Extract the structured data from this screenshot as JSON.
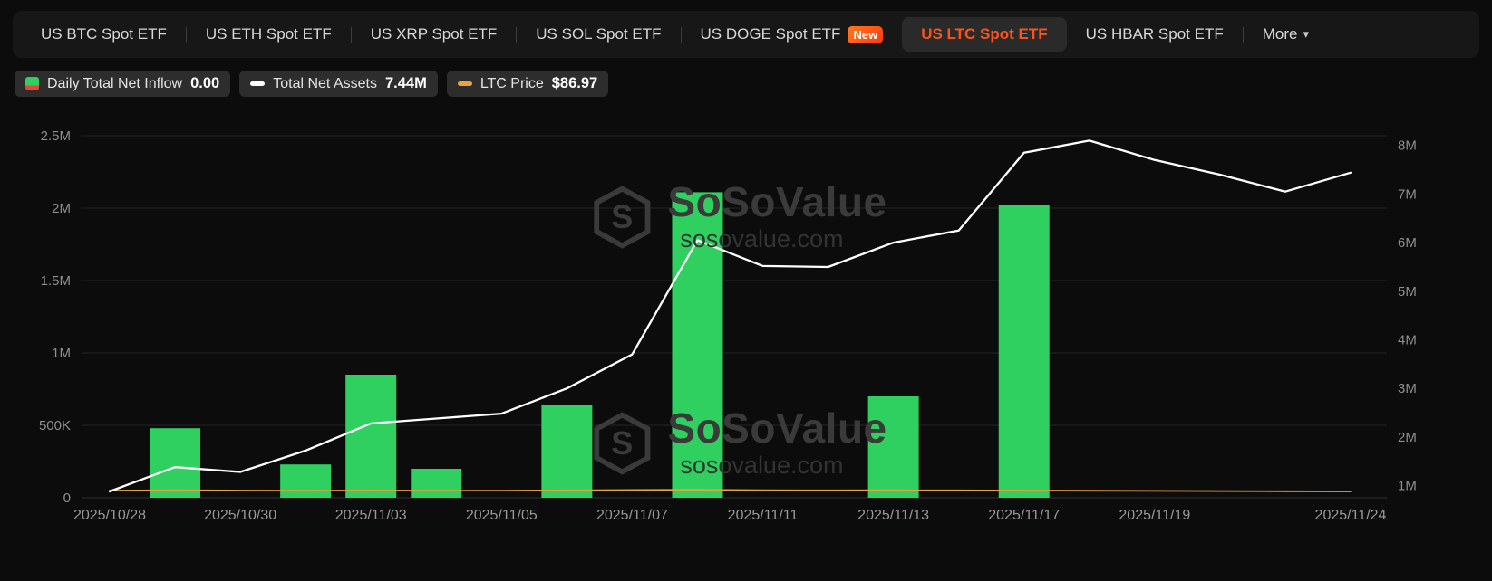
{
  "tab_bar": {
    "tabs": [
      {
        "label": "US BTC Spot ETF"
      },
      {
        "label": "US ETH Spot ETF"
      },
      {
        "label": "US XRP Spot ETF"
      },
      {
        "label": "US SOL Spot ETF"
      },
      {
        "label": "US DOGE Spot ETF",
        "badge": "New"
      },
      {
        "label": "US LTC Spot ETF",
        "active": true
      },
      {
        "label": "US HBAR Spot ETF"
      }
    ],
    "more_label": "More"
  },
  "legend": {
    "inflow": {
      "label": "Daily Total Net Inflow",
      "value": "0.00"
    },
    "assets": {
      "label": "Total Net Assets",
      "value": "7.44M"
    },
    "price": {
      "label": "LTC Price",
      "value": "$86.97"
    }
  },
  "watermark": {
    "title": "SoSoValue",
    "domain": "sosovalue.com"
  },
  "colors": {
    "accent_orange": "#fa541c",
    "bar_green": "#2fd05f",
    "legend_red": "#f04438",
    "assets_line": "#ffffff",
    "price_line": "#e8a33d",
    "background": "#0c0c0c"
  },
  "chart_data": {
    "type": "bar+line",
    "title": "US LTC Spot ETF daily flows, total net assets and LTC price",
    "x": [
      "2025/10/28",
      "2025/10/29",
      "2025/10/30",
      "2025/10/31",
      "2025/11/03",
      "2025/11/04",
      "2025/11/05",
      "2025/11/06",
      "2025/11/07",
      "2025/11/10",
      "2025/11/11",
      "2025/11/12",
      "2025/11/13",
      "2025/11/14",
      "2025/11/17",
      "2025/11/18",
      "2025/11/19",
      "2025/11/20",
      "2025/11/21",
      "2025/11/24"
    ],
    "x_tick_indices": [
      0,
      2,
      4,
      6,
      8,
      10,
      12,
      14,
      16,
      19
    ],
    "left_axis": {
      "ylim": [
        0,
        2500000
      ],
      "ticks": [
        {
          "value": 0,
          "label": "0"
        },
        {
          "value": 500000,
          "label": "500K"
        },
        {
          "value": 1000000,
          "label": "1M"
        },
        {
          "value": 1500000,
          "label": "1.5M"
        },
        {
          "value": 2000000,
          "label": "2M"
        },
        {
          "value": 2500000,
          "label": "2.5M"
        }
      ]
    },
    "right_axis": {
      "ylim": [
        750000,
        8200000
      ],
      "ticks": [
        {
          "value": 1000000,
          "label": "1M"
        },
        {
          "value": 2000000,
          "label": "2M"
        },
        {
          "value": 3000000,
          "label": "3M"
        },
        {
          "value": 4000000,
          "label": "4M"
        },
        {
          "value": 5000000,
          "label": "5M"
        },
        {
          "value": 6000000,
          "label": "6M"
        },
        {
          "value": 7000000,
          "label": "7M"
        },
        {
          "value": 8000000,
          "label": "8M"
        }
      ]
    },
    "price_axis": {
      "ylim": [
        0,
        5000
      ],
      "hidden": true
    },
    "series": [
      {
        "name": "Daily Total Net Inflow",
        "type": "bar",
        "axis": "left",
        "color": "#2fd05f",
        "values": [
          0,
          480000,
          0,
          230000,
          850000,
          200000,
          0,
          640000,
          0,
          2110000,
          0,
          0,
          700000,
          0,
          2020000,
          0,
          0,
          0,
          0,
          0
        ]
      },
      {
        "name": "Total Net Assets",
        "type": "line",
        "axis": "right",
        "color": "#ffffff",
        "values": [
          880000,
          1380000,
          1280000,
          1720000,
          2280000,
          2380000,
          2480000,
          3000000,
          3700000,
          6050000,
          5520000,
          5500000,
          6000000,
          6250000,
          7850000,
          8100000,
          7700000,
          7400000,
          7050000,
          7440000
        ]
      },
      {
        "name": "LTC Price",
        "type": "line",
        "axis": "price",
        "color": "#e8a33d",
        "values": [
          100.5,
          103.2,
          99.4,
          97.1,
          100.8,
          98.6,
          99.2,
          102.4,
          107.8,
          111.5,
          105.3,
          102.1,
          103.6,
          102.2,
          100.1,
          97.8,
          95.2,
          92.6,
          89.4,
          86.97
        ]
      }
    ]
  }
}
